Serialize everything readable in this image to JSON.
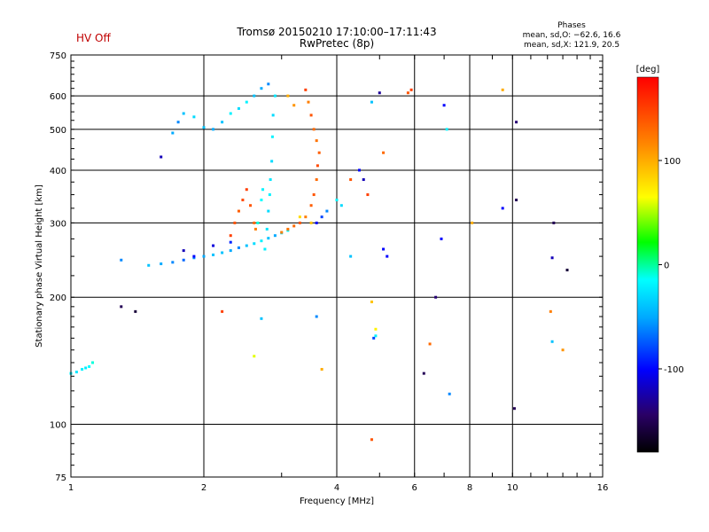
{
  "status_label": "HV Off",
  "title_line1": "Tromsø 20150210 17:10:00–17:11:43",
  "title_line2": "RwPretec (8p)",
  "phases_heading": "Phases",
  "phases_o": "mean, sd,O: −62.6, 16.6",
  "phases_x": "mean, sd,X: 121.9, 20.5",
  "colorbar_unit": "[deg]",
  "colors": {
    "status": "#c00000",
    "grid": "#000000"
  },
  "chart_data": {
    "type": "scatter",
    "xlabel": "Frequency [MHz]",
    "ylabel": "Stationary phase Virtual Height [km]",
    "xscale": "log",
    "yscale": "log",
    "xlim": [
      1,
      16
    ],
    "ylim": [
      75,
      750
    ],
    "x_ticks": [
      1,
      2,
      4,
      6,
      8,
      10,
      16
    ],
    "y_ticks": [
      75,
      100,
      200,
      300,
      400,
      500,
      600,
      750
    ],
    "x_grid": [
      2,
      4,
      6,
      8,
      10
    ],
    "y_grid": [
      100,
      200,
      300,
      400,
      500,
      600
    ],
    "colorbar": {
      "min": -180,
      "max": 180,
      "ticks": [
        100,
        0,
        -100
      ],
      "unit": "[deg]"
    },
    "series": [
      {
        "points": [
          [
            1.0,
            132,
            -20
          ],
          [
            1.03,
            133,
            -25
          ],
          [
            1.06,
            135,
            -20
          ],
          [
            1.1,
            137,
            -15
          ],
          [
            1.12,
            140,
            -10
          ],
          [
            1.08,
            136,
            -22
          ]
        ]
      },
      {
        "points": [
          [
            1.5,
            238,
            -40
          ],
          [
            1.6,
            240,
            -50
          ],
          [
            1.7,
            242,
            -60
          ],
          [
            1.8,
            245,
            -70
          ],
          [
            1.9,
            248,
            -60
          ],
          [
            2.0,
            250,
            -50
          ],
          [
            2.1,
            252,
            -40
          ],
          [
            2.2,
            255,
            -40
          ],
          [
            2.3,
            258,
            -50
          ],
          [
            2.4,
            262,
            -60
          ],
          [
            2.5,
            265,
            -40
          ],
          [
            2.6,
            268,
            -30
          ],
          [
            2.7,
            272,
            -20
          ],
          [
            2.8,
            276,
            -40
          ],
          [
            2.9,
            280,
            -50
          ],
          [
            3.0,
            284,
            -30
          ],
          [
            3.1,
            288,
            -20
          ],
          [
            2.3,
            270,
            -90
          ],
          [
            2.1,
            265,
            -110
          ],
          [
            1.8,
            258,
            -120
          ]
        ]
      },
      {
        "points": [
          [
            1.7,
            490,
            -50
          ],
          [
            1.75,
            520,
            -60
          ],
          [
            1.8,
            545,
            -40
          ],
          [
            1.9,
            535,
            -30
          ],
          [
            2.0,
            505,
            -40
          ],
          [
            2.1,
            500,
            -50
          ],
          [
            2.2,
            520,
            -40
          ],
          [
            2.3,
            545,
            -20
          ],
          [
            2.4,
            560,
            -30
          ],
          [
            2.5,
            580,
            -20
          ],
          [
            2.6,
            600,
            -40
          ],
          [
            2.7,
            625,
            -50
          ],
          [
            2.8,
            640,
            -60
          ]
        ]
      },
      {
        "points": [
          [
            2.75,
            260,
            -20
          ],
          [
            2.78,
            290,
            -25
          ],
          [
            2.8,
            320,
            -30
          ],
          [
            2.82,
            350,
            -20
          ],
          [
            2.83,
            380,
            -25
          ],
          [
            2.85,
            420,
            -30
          ],
          [
            2.86,
            480,
            -20
          ],
          [
            2.87,
            540,
            -30
          ],
          [
            2.9,
            600,
            -25
          ],
          [
            2.65,
            300,
            -10
          ],
          [
            2.7,
            340,
            -15
          ],
          [
            2.72,
            360,
            -20
          ]
        ]
      },
      {
        "points": [
          [
            2.3,
            280,
            150
          ],
          [
            2.35,
            300,
            140
          ],
          [
            2.4,
            320,
            135
          ],
          [
            2.45,
            340,
            145
          ],
          [
            2.5,
            360,
            150
          ],
          [
            2.55,
            330,
            140
          ],
          [
            2.6,
            300,
            130
          ],
          [
            2.62,
            290,
            120
          ]
        ]
      },
      {
        "points": [
          [
            3.0,
            285,
            120
          ],
          [
            3.1,
            290,
            125
          ],
          [
            3.2,
            295,
            130
          ],
          [
            3.3,
            300,
            140
          ],
          [
            3.4,
            310,
            120
          ],
          [
            3.5,
            330,
            135
          ],
          [
            3.55,
            350,
            140
          ],
          [
            3.6,
            380,
            130
          ],
          [
            3.62,
            410,
            145
          ],
          [
            3.65,
            440,
            135
          ],
          [
            3.6,
            470,
            125
          ],
          [
            3.55,
            500,
            130
          ],
          [
            3.5,
            540,
            140
          ],
          [
            3.45,
            580,
            120
          ],
          [
            3.4,
            620,
            150
          ],
          [
            3.2,
            570,
            110
          ],
          [
            3.1,
            600,
            100
          ],
          [
            3.3,
            310,
            80
          ],
          [
            3.5,
            300,
            90
          ]
        ]
      },
      {
        "points": [
          [
            3.6,
            300,
            -100
          ],
          [
            3.7,
            310,
            -80
          ],
          [
            3.8,
            320,
            -60
          ],
          [
            4.0,
            340,
            -20
          ],
          [
            4.1,
            330,
            -30
          ],
          [
            4.3,
            380,
            140
          ],
          [
            4.5,
            400,
            -100
          ],
          [
            4.7,
            350,
            150
          ],
          [
            4.8,
            580,
            -40
          ],
          [
            5.0,
            610,
            -130
          ],
          [
            5.1,
            440,
            130
          ],
          [
            5.8,
            610,
            140
          ],
          [
            5.9,
            620,
            150
          ],
          [
            7.0,
            570,
            -100
          ],
          [
            7.1,
            500,
            -20
          ],
          [
            9.5,
            620,
            100
          ],
          [
            10.2,
            520,
            -140
          ],
          [
            9.5,
            325,
            -100
          ],
          [
            10.2,
            340,
            -150
          ],
          [
            4.6,
            380,
            -120
          ],
          [
            5.1,
            260,
            -100
          ],
          [
            5.2,
            250,
            -100
          ],
          [
            6.9,
            275,
            -100
          ],
          [
            8.1,
            300,
            100
          ],
          [
            6.7,
            200,
            -140
          ],
          [
            1.3,
            245,
            -60
          ],
          [
            1.6,
            430,
            -120
          ],
          [
            1.3,
            190,
            -150
          ],
          [
            1.4,
            185,
            -160
          ],
          [
            2.2,
            185,
            150
          ],
          [
            2.7,
            178,
            -40
          ],
          [
            3.6,
            180,
            -60
          ],
          [
            4.8,
            195,
            90
          ],
          [
            4.9,
            168,
            70
          ],
          [
            4.9,
            162,
            -20
          ],
          [
            4.85,
            160,
            -80
          ],
          [
            2.6,
            145,
            60
          ],
          [
            3.7,
            135,
            100
          ],
          [
            6.5,
            155,
            130
          ],
          [
            6.3,
            132,
            -150
          ],
          [
            7.2,
            118,
            -60
          ],
          [
            10.1,
            109,
            -150
          ],
          [
            4.8,
            92,
            140
          ],
          [
            12.4,
            300,
            -150
          ],
          [
            12.3,
            248,
            -120
          ],
          [
            13.3,
            232,
            -160
          ],
          [
            12.2,
            185,
            120
          ],
          [
            12.3,
            157,
            -40
          ],
          [
            13.0,
            150,
            110
          ],
          [
            4.3,
            250,
            -40
          ],
          [
            1.9,
            250,
            -100
          ]
        ]
      }
    ]
  }
}
